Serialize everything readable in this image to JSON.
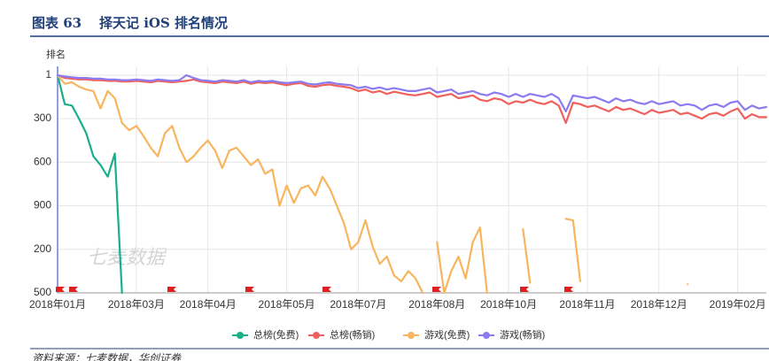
{
  "header": {
    "label": "图表 63",
    "title": "择天记 iOS 排名情况"
  },
  "source": "资料来源：七麦数据，华创证券",
  "watermark": "七麦数据",
  "chart_data": {
    "type": "line",
    "y_label": "排名",
    "y_inverted": true,
    "ylim": [
      1,
      1500
    ],
    "yticks": [
      1,
      300,
      600,
      900,
      {
        "value": 1200,
        "label": "200"
      },
      {
        "value": 1500,
        "label": "500"
      }
    ],
    "grid": true,
    "legend": "bottom",
    "categories": [
      "2018年01月",
      null,
      null,
      null,
      null,
      null,
      null,
      null,
      null,
      null,
      null,
      "2018年03月",
      null,
      null,
      null,
      null,
      null,
      null,
      null,
      null,
      null,
      "2018年04月",
      null,
      null,
      null,
      null,
      null,
      null,
      null,
      null,
      null,
      null,
      "2018年05月",
      null,
      null,
      null,
      null,
      null,
      null,
      null,
      null,
      null,
      "2018年07月",
      null,
      null,
      null,
      null,
      null,
      null,
      null,
      null,
      null,
      null,
      "2018年08月",
      null,
      null,
      null,
      null,
      null,
      null,
      null,
      null,
      null,
      "2018年10月",
      null,
      null,
      null,
      null,
      null,
      null,
      null,
      null,
      null,
      null,
      "2018年11月",
      null,
      null,
      null,
      null,
      null,
      null,
      null,
      null,
      null,
      "2018年12月",
      null,
      null,
      null,
      null,
      null,
      null,
      null,
      null,
      null,
      null,
      "2019年02月",
      null,
      null,
      null,
      null
    ],
    "series": [
      {
        "name": "总榜(免费)",
        "color": "#1aaf8b",
        "values": [
          1,
          200,
          210,
          300,
          400,
          560,
          620,
          700,
          540,
          1500,
          null,
          null,
          null,
          null,
          null,
          null,
          null,
          null,
          null,
          null,
          null,
          null,
          null,
          null,
          null,
          null,
          null,
          null,
          null,
          null,
          null,
          null,
          null,
          null,
          null,
          null,
          null,
          null,
          null,
          null,
          null,
          null,
          null,
          null,
          null,
          null,
          null,
          null,
          null,
          null,
          null,
          null,
          null,
          null,
          null,
          null,
          null,
          null,
          null,
          null,
          null,
          null,
          null,
          null,
          null,
          null,
          null,
          null,
          null,
          null,
          null,
          null,
          null,
          null,
          null,
          null,
          null,
          null,
          null,
          null,
          null,
          null,
          null,
          null,
          null,
          null,
          null,
          null,
          null,
          null,
          null,
          null,
          null,
          null,
          null,
          null,
          null,
          null,
          null,
          null
        ]
      },
      {
        "name": "总榜(畅销)",
        "color": "#f0605d",
        "values": [
          1,
          20,
          25,
          30,
          30,
          35,
          35,
          40,
          40,
          45,
          45,
          40,
          45,
          50,
          40,
          45,
          50,
          45,
          40,
          30,
          45,
          50,
          55,
          45,
          50,
          55,
          45,
          60,
          50,
          55,
          50,
          60,
          70,
          60,
          55,
          75,
          80,
          70,
          65,
          75,
          80,
          90,
          110,
          100,
          120,
          110,
          130,
          115,
          125,
          135,
          140,
          130,
          120,
          150,
          140,
          130,
          160,
          150,
          140,
          170,
          180,
          160,
          170,
          200,
          180,
          190,
          170,
          190,
          200,
          180,
          210,
          330,
          190,
          200,
          220,
          210,
          230,
          250,
          220,
          240,
          230,
          250,
          270,
          240,
          260,
          250,
          240,
          270,
          260,
          280,
          300,
          270,
          260,
          280,
          250,
          230,
          300,
          270,
          290,
          290
        ]
      },
      {
        "name": "游戏(免费)",
        "color": "#f7b55f",
        "values": [
          1,
          60,
          50,
          80,
          100,
          110,
          230,
          110,
          160,
          330,
          380,
          350,
          420,
          500,
          560,
          400,
          350,
          500,
          600,
          560,
          500,
          450,
          520,
          640,
          520,
          500,
          560,
          620,
          580,
          680,
          650,
          900,
          760,
          880,
          780,
          760,
          830,
          700,
          780,
          900,
          1020,
          1200,
          1150,
          1000,
          1180,
          1300,
          1250,
          1380,
          1420,
          1350,
          1400,
          1500,
          null,
          1150,
          1500,
          1350,
          1250,
          1400,
          1150,
          1050,
          1500,
          null,
          null,
          null,
          null,
          1060,
          1430,
          null,
          null,
          null,
          null,
          990,
          1000,
          1420,
          null,
          null,
          null,
          null,
          null,
          null,
          null,
          null,
          null,
          null,
          null,
          null,
          null,
          null,
          1440,
          null,
          null,
          null,
          null,
          null,
          null,
          null,
          null,
          null,
          null,
          null
        ]
      },
      {
        "name": "游戏(畅销)",
        "color": "#8c7bf0",
        "values": [
          1,
          10,
          15,
          20,
          20,
          25,
          25,
          30,
          30,
          35,
          35,
          30,
          35,
          40,
          30,
          35,
          40,
          35,
          1,
          20,
          35,
          40,
          45,
          35,
          40,
          45,
          35,
          50,
          40,
          45,
          40,
          50,
          55,
          50,
          45,
          60,
          65,
          55,
          50,
          60,
          65,
          70,
          90,
          80,
          95,
          85,
          100,
          90,
          100,
          110,
          110,
          100,
          90,
          120,
          110,
          100,
          130,
          120,
          110,
          130,
          140,
          120,
          130,
          150,
          130,
          150,
          130,
          140,
          150,
          130,
          160,
          250,
          140,
          150,
          160,
          150,
          170,
          190,
          160,
          180,
          170,
          190,
          200,
          180,
          200,
          190,
          180,
          210,
          200,
          210,
          240,
          210,
          200,
          220,
          190,
          180,
          240,
          210,
          230,
          220
        ]
      }
    ]
  }
}
